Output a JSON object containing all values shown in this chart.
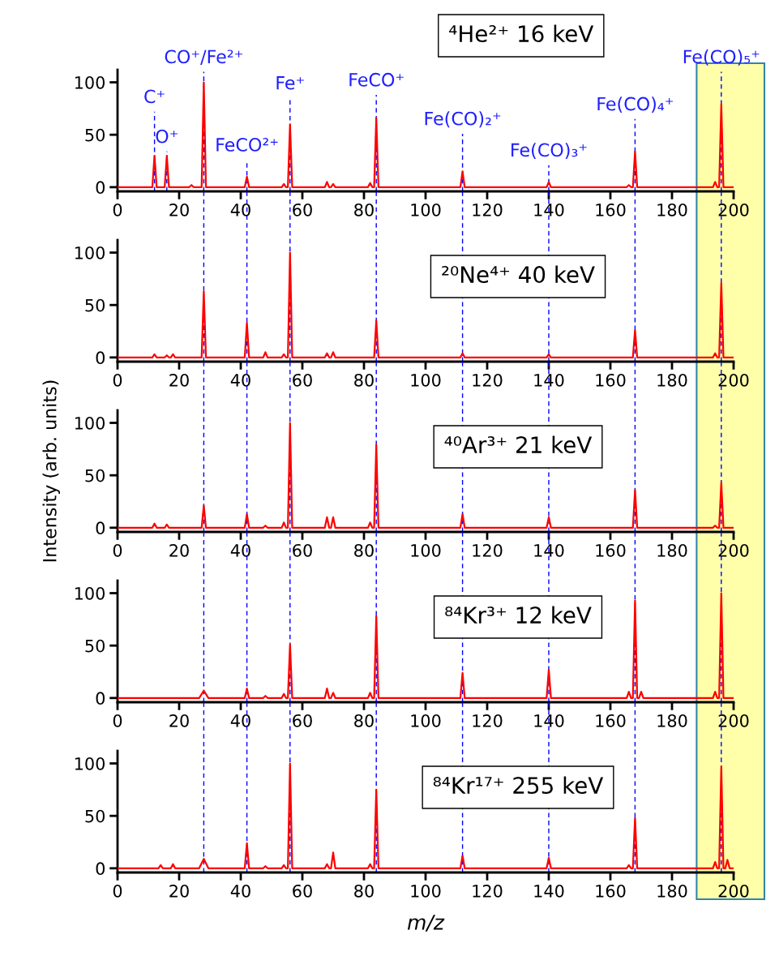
{
  "chart_data": [
    {
      "type": "line",
      "x": [
        0,
        11.3,
        12,
        12.7,
        15.3,
        16,
        16.7,
        23.3,
        24,
        24.7,
        27.3,
        28,
        28.7,
        41.3,
        42,
        42.7,
        53.3,
        54,
        54.7,
        55.3,
        56,
        56.7,
        67.3,
        68,
        68.7,
        69.3,
        70,
        70.7,
        81.3,
        82,
        82.7,
        83.3,
        84,
        84.7,
        111.3,
        112,
        112.7,
        139.3,
        140,
        140.7,
        165.3,
        166,
        166.7,
        167.3,
        168,
        168.7,
        193.3,
        194,
        194.7,
        195.3,
        196,
        196.7,
        200
      ],
      "series": [
        {
          "color": "#ff0000",
          "values": [
            0,
            0,
            30,
            0,
            0,
            30,
            0,
            0,
            2,
            0,
            0,
            100,
            0,
            0,
            10,
            0,
            0,
            3,
            0,
            0,
            60,
            0,
            0,
            5,
            0,
            0,
            3,
            0,
            0,
            4,
            0,
            0,
            66,
            0,
            0,
            15,
            0,
            0,
            5,
            0,
            0,
            2,
            0,
            0,
            34,
            0,
            0,
            5,
            0,
            0,
            79,
            0,
            0
          ]
        }
      ],
      "xlim": [
        0,
        200
      ],
      "xticks": [
        0,
        20,
        40,
        60,
        80,
        100,
        120,
        140,
        160,
        180,
        200
      ],
      "ylim": [
        -4,
        112
      ],
      "yticks": [
        0,
        50,
        100
      ],
      "annotations": [
        "⁴He²⁺ 16 keV",
        {
          "text": "C⁺",
          "x": 12,
          "y": 30
        },
        {
          "text": "O⁺",
          "x": 16,
          "y": 30
        },
        {
          "text": "CO⁺/Fe²⁺",
          "x": 28,
          "y": 100
        },
        {
          "text": "FeCO²⁺",
          "x": 42,
          "y": 10
        },
        {
          "text": "Fe⁺",
          "x": 56,
          "y": 60
        },
        {
          "text": "FeCO⁺",
          "x": 84,
          "y": 66
        },
        {
          "text": "Fe(CO)₂⁺",
          "x": 112,
          "y": 15
        },
        {
          "text": "Fe(CO)₃⁺",
          "x": 140,
          "y": 5
        },
        {
          "text": "Fe(CO)₄⁺",
          "x": 168,
          "y": 34
        },
        {
          "text": "Fe(CO)₅⁺",
          "x": 196,
          "y": 79
        }
      ],
      "bands": [
        {
          "axis": "x",
          "from": 188,
          "to": 210,
          "color": "#ffffaa"
        }
      ],
      "ref_lines": [
        {
          "axis": "x",
          "value": 12,
          "color": "#0000ff",
          "line_style": "dashed"
        },
        {
          "axis": "x",
          "value": 16,
          "color": "#0000ff",
          "line_style": "dashed"
        },
        {
          "axis": "x",
          "value": 28,
          "color": "#0000ff",
          "line_style": "dashed"
        },
        {
          "axis": "x",
          "value": 42,
          "color": "#0000ff",
          "line_style": "dashed"
        },
        {
          "axis": "x",
          "value": 56,
          "color": "#0000ff",
          "line_style": "dashed"
        },
        {
          "axis": "x",
          "value": 84,
          "color": "#0000ff",
          "line_style": "dashed"
        },
        {
          "axis": "x",
          "value": 112,
          "color": "#0000ff",
          "line_style": "dashed"
        },
        {
          "axis": "x",
          "value": 140,
          "color": "#0000ff",
          "line_style": "dashed"
        },
        {
          "axis": "x",
          "value": 168,
          "color": "#0000ff",
          "line_style": "dashed"
        },
        {
          "axis": "x",
          "value": 196,
          "color": "#0000ff",
          "line_style": "dashed"
        }
      ]
    },
    {
      "type": "line",
      "x": [
        0,
        11.3,
        12,
        12.7,
        15.3,
        16,
        16.7,
        17.3,
        18,
        18.7,
        27.3,
        28,
        28.7,
        41.3,
        42,
        42.7,
        47.3,
        48,
        48.7,
        53.3,
        54,
        54.7,
        55.3,
        56,
        56.7,
        67.3,
        68,
        68.7,
        69.3,
        70,
        70.7,
        83.3,
        84,
        84.7,
        111.3,
        112,
        112.7,
        139.3,
        140,
        140.7,
        167.3,
        168,
        168.7,
        193.3,
        194,
        194.7,
        195.3,
        196,
        196.7,
        200
      ],
      "series": [
        {
          "color": "#ff0000",
          "values": [
            0,
            0,
            3,
            0,
            0,
            2,
            0,
            0,
            3,
            0,
            0,
            63,
            0,
            0,
            33,
            0,
            0,
            5,
            0,
            0,
            3,
            0,
            0,
            100,
            0,
            0,
            4,
            0,
            0,
            5,
            0,
            0,
            35,
            0,
            0,
            4,
            0,
            0,
            3,
            0,
            0,
            26,
            0,
            0,
            4,
            0,
            0,
            71,
            0,
            0
          ]
        }
      ],
      "xlim": [
        0,
        200
      ],
      "xticks": [
        0,
        20,
        40,
        60,
        80,
        100,
        120,
        140,
        160,
        180,
        200
      ],
      "ylim": [
        -4,
        112
      ],
      "yticks": [
        0,
        50,
        100
      ],
      "annotations": [
        "²⁰Ne⁴⁺ 40 keV"
      ],
      "ref_lines": [
        {
          "axis": "x",
          "value": 28,
          "color": "#0000ff",
          "line_style": "dashed"
        },
        {
          "axis": "x",
          "value": 42,
          "color": "#0000ff",
          "line_style": "dashed"
        },
        {
          "axis": "x",
          "value": 56,
          "color": "#0000ff",
          "line_style": "dashed"
        },
        {
          "axis": "x",
          "value": 84,
          "color": "#0000ff",
          "line_style": "dashed"
        },
        {
          "axis": "x",
          "value": 112,
          "color": "#0000ff",
          "line_style": "dashed"
        },
        {
          "axis": "x",
          "value": 140,
          "color": "#0000ff",
          "line_style": "dashed"
        },
        {
          "axis": "x",
          "value": 168,
          "color": "#0000ff",
          "line_style": "dashed"
        },
        {
          "axis": "x",
          "value": 196,
          "color": "#0000ff",
          "line_style": "dashed"
        }
      ]
    },
    {
      "type": "line",
      "x": [
        0,
        11.3,
        12,
        12.7,
        15.3,
        16,
        16.7,
        27.3,
        28,
        28.7,
        41.3,
        42,
        42.7,
        47.3,
        48,
        48.7,
        53.3,
        54,
        54.7,
        55.3,
        56,
        56.7,
        67.3,
        68,
        68.7,
        69.3,
        70,
        70.7,
        81.3,
        82,
        82.7,
        83.3,
        84,
        84.7,
        111.3,
        112,
        112.7,
        139.3,
        140,
        140.7,
        167.3,
        168,
        168.7,
        193.3,
        194,
        194.7,
        195.3,
        196,
        196.7,
        200
      ],
      "series": [
        {
          "color": "#ff0000",
          "values": [
            0,
            0,
            4,
            0,
            0,
            3,
            0,
            0,
            21,
            0,
            0,
            13,
            0,
            0,
            2,
            0,
            0,
            5,
            0,
            0,
            100,
            0,
            0,
            10,
            0,
            0,
            10,
            0,
            0,
            5,
            0,
            0,
            79,
            0,
            0,
            13,
            0,
            0,
            10,
            0,
            0,
            36,
            0,
            0,
            2,
            0,
            0,
            43,
            0,
            0
          ]
        }
      ],
      "xlim": [
        0,
        200
      ],
      "xticks": [
        0,
        20,
        40,
        60,
        80,
        100,
        120,
        140,
        160,
        180,
        200
      ],
      "ylim": [
        -4,
        112
      ],
      "yticks": [
        0,
        50,
        100
      ],
      "ylabel": "Intensity (arb. units)",
      "annotations": [
        "⁴⁰Ar³⁺ 21 keV"
      ],
      "ref_lines": [
        {
          "axis": "x",
          "value": 28,
          "color": "#0000ff",
          "line_style": "dashed"
        },
        {
          "axis": "x",
          "value": 42,
          "color": "#0000ff",
          "line_style": "dashed"
        },
        {
          "axis": "x",
          "value": 56,
          "color": "#0000ff",
          "line_style": "dashed"
        },
        {
          "axis": "x",
          "value": 84,
          "color": "#0000ff",
          "line_style": "dashed"
        },
        {
          "axis": "x",
          "value": 112,
          "color": "#0000ff",
          "line_style": "dashed"
        },
        {
          "axis": "x",
          "value": 140,
          "color": "#0000ff",
          "line_style": "dashed"
        },
        {
          "axis": "x",
          "value": 168,
          "color": "#0000ff",
          "line_style": "dashed"
        },
        {
          "axis": "x",
          "value": 196,
          "color": "#0000ff",
          "line_style": "dashed"
        }
      ]
    },
    {
      "type": "line",
      "x": [
        0,
        26.5,
        28,
        29.5,
        41.3,
        42,
        42.7,
        47.3,
        48,
        48.7,
        53.3,
        54,
        54.7,
        55.3,
        56,
        56.7,
        67.3,
        68,
        68.7,
        69.3,
        70,
        70.7,
        81.3,
        82,
        82.7,
        83.3,
        84,
        84.7,
        111.3,
        112,
        112.7,
        139.3,
        140,
        140.7,
        165.3,
        166,
        166.7,
        167.3,
        168,
        168.7,
        169.3,
        170,
        170.7,
        193.3,
        194,
        194.7,
        195.3,
        196,
        196.7,
        200
      ],
      "series": [
        {
          "color": "#ff0000",
          "values": [
            0,
            0,
            7,
            0,
            0,
            9,
            0,
            0,
            2,
            0,
            0,
            4,
            0,
            0,
            51,
            0,
            0,
            9,
            0,
            0,
            5,
            0,
            0,
            5,
            0,
            0,
            78,
            0,
            0,
            24,
            0,
            0,
            27,
            0,
            0,
            6,
            0,
            0,
            93,
            0,
            0,
            6,
            0,
            0,
            6,
            0,
            0,
            100,
            0,
            0
          ]
        }
      ],
      "xlim": [
        0,
        200
      ],
      "xticks": [
        0,
        20,
        40,
        60,
        80,
        100,
        120,
        140,
        160,
        180,
        200
      ],
      "ylim": [
        -4,
        112
      ],
      "yticks": [
        0,
        50,
        100
      ],
      "annotations": [
        "⁸⁴Kr³⁺ 12 keV"
      ],
      "ref_lines": [
        {
          "axis": "x",
          "value": 28,
          "color": "#0000ff",
          "line_style": "dashed"
        },
        {
          "axis": "x",
          "value": 42,
          "color": "#0000ff",
          "line_style": "dashed"
        },
        {
          "axis": "x",
          "value": 56,
          "color": "#0000ff",
          "line_style": "dashed"
        },
        {
          "axis": "x",
          "value": 84,
          "color": "#0000ff",
          "line_style": "dashed"
        },
        {
          "axis": "x",
          "value": 112,
          "color": "#0000ff",
          "line_style": "dashed"
        },
        {
          "axis": "x",
          "value": 140,
          "color": "#0000ff",
          "line_style": "dashed"
        },
        {
          "axis": "x",
          "value": 168,
          "color": "#0000ff",
          "line_style": "dashed"
        },
        {
          "axis": "x",
          "value": 196,
          "color": "#0000ff",
          "line_style": "dashed"
        }
      ]
    },
    {
      "type": "line",
      "x": [
        0,
        13.3,
        14,
        14.7,
        17.3,
        18,
        18.7,
        26.5,
        28,
        29.5,
        41.3,
        42,
        42.7,
        47.3,
        48,
        48.7,
        53.3,
        54,
        54.7,
        55.3,
        56,
        56.7,
        67.3,
        68,
        68.7,
        69.3,
        70,
        70.7,
        81.3,
        82,
        82.7,
        83.3,
        84,
        84.7,
        111.3,
        112,
        112.7,
        139.3,
        140,
        140.7,
        165.3,
        166,
        166.7,
        167.3,
        168,
        168.7,
        193.3,
        194,
        194.7,
        195.3,
        196,
        196.7,
        197.3,
        198,
        198.7,
        200
      ],
      "series": [
        {
          "color": "#ff0000",
          "values": [
            0,
            0,
            3,
            0,
            0,
            4,
            0,
            0,
            9,
            0,
            0,
            24,
            0,
            0,
            2,
            0,
            0,
            3,
            0,
            0,
            100,
            0,
            0,
            4,
            0,
            0,
            15,
            0,
            0,
            4,
            0,
            0,
            75,
            0,
            0,
            12,
            0,
            0,
            10,
            0,
            0,
            3,
            0,
            0,
            48,
            0,
            0,
            6,
            0,
            0,
            97,
            0,
            0,
            8,
            0,
            0
          ]
        }
      ],
      "xlim": [
        0,
        200
      ],
      "xticks": [
        0,
        20,
        40,
        60,
        80,
        100,
        120,
        140,
        160,
        180,
        200
      ],
      "ylim": [
        -4,
        112
      ],
      "yticks": [
        0,
        50,
        100
      ],
      "xlabel": "m/z",
      "annotations": [
        "⁸⁴Kr¹⁷⁺ 255 keV"
      ],
      "ref_lines": [
        {
          "axis": "x",
          "value": 28,
          "color": "#0000ff",
          "line_style": "dashed"
        },
        {
          "axis": "x",
          "value": 42,
          "color": "#0000ff",
          "line_style": "dashed"
        },
        {
          "axis": "x",
          "value": 56,
          "color": "#0000ff",
          "line_style": "dashed"
        },
        {
          "axis": "x",
          "value": 84,
          "color": "#0000ff",
          "line_style": "dashed"
        },
        {
          "axis": "x",
          "value": 112,
          "color": "#0000ff",
          "line_style": "dashed"
        },
        {
          "axis": "x",
          "value": 140,
          "color": "#0000ff",
          "line_style": "dashed"
        },
        {
          "axis": "x",
          "value": 168,
          "color": "#0000ff",
          "line_style": "dashed"
        },
        {
          "axis": "x",
          "value": 196,
          "color": "#0000ff",
          "line_style": "dashed"
        }
      ]
    }
  ]
}
